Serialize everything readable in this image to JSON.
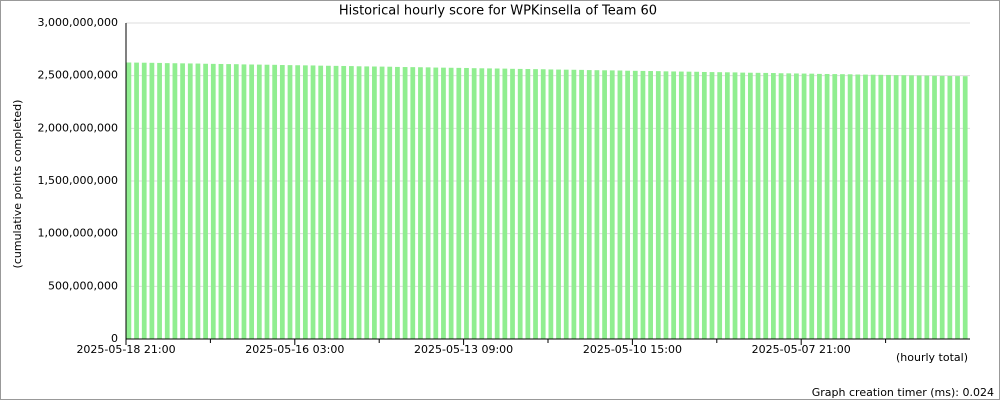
{
  "chart_data": {
    "type": "bar",
    "title": "Historical hourly score for WPKinsella of Team 60",
    "y_label": "(cumulative points completed)",
    "x_label": "(hourly total)",
    "footer": "Graph creation timer (ms): 0.024",
    "color": "#90ee90",
    "grid": true,
    "ylim": [
      0,
      3000000000
    ],
    "yticks": [
      0,
      {
        "value": 500000000,
        "label": "500,000,000"
      },
      {
        "value": 1000000000,
        "label": "1,000,000,000"
      },
      {
        "value": 1500000000,
        "label": "1,500,000,000"
      },
      {
        "value": 2000000000,
        "label": "2,000,000,000"
      },
      {
        "value": 2500000000,
        "label": "2,500,000,000"
      },
      {
        "value": 3000000000,
        "label": "3,000,000,000"
      }
    ],
    "categories": [
      "2025-05-18 21:00",
      null,
      null,
      null,
      null,
      null,
      null,
      null,
      null,
      null,
      null,
      null,
      null,
      null,
      null,
      null,
      null,
      null,
      null,
      null,
      null,
      null,
      "2025-05-16 03:00",
      null,
      null,
      null,
      null,
      null,
      null,
      null,
      null,
      null,
      null,
      null,
      null,
      null,
      null,
      null,
      null,
      null,
      null,
      null,
      null,
      null,
      "2025-05-13 09:00",
      null,
      null,
      null,
      null,
      null,
      null,
      null,
      null,
      null,
      null,
      null,
      null,
      null,
      null,
      null,
      null,
      null,
      null,
      null,
      null,
      null,
      "2025-05-10 15:00",
      null,
      null,
      null,
      null,
      null,
      null,
      null,
      null,
      null,
      null,
      null,
      null,
      null,
      null,
      null,
      null,
      null,
      null,
      null,
      null,
      null,
      "2025-05-07 21:00",
      null,
      null,
      null,
      null,
      null,
      null,
      null,
      null,
      null,
      null,
      null,
      null,
      null,
      null,
      null,
      null,
      null,
      null,
      null,
      null,
      null
    ],
    "values": [
      2625000000,
      2624000000,
      2623000000,
      2622000000,
      2621000000,
      2619000000,
      2618000000,
      2617000000,
      2616000000,
      2615000000,
      2613000000,
      2612000000,
      2611000000,
      2610000000,
      2609000000,
      2607000000,
      2606000000,
      2605000000,
      2604000000,
      2603000000,
      2601000000,
      2600000000,
      2599000000,
      2598000000,
      2597000000,
      2595000000,
      2594000000,
      2593000000,
      2592000000,
      2591000000,
      2589000000,
      2588000000,
      2587000000,
      2586000000,
      2585000000,
      2583000000,
      2582000000,
      2581000000,
      2580000000,
      2579000000,
      2577000000,
      2576000000,
      2575000000,
      2574000000,
      2573000000,
      2571000000,
      2570000000,
      2569000000,
      2568000000,
      2567000000,
      2565000000,
      2564000000,
      2563000000,
      2562000000,
      2561000000,
      2559000000,
      2558000000,
      2557000000,
      2556000000,
      2555000000,
      2553000000,
      2552000000,
      2551000000,
      2550000000,
      2549000000,
      2547000000,
      2546000000,
      2545000000,
      2544000000,
      2543000000,
      2541000000,
      2540000000,
      2539000000,
      2538000000,
      2537000000,
      2535000000,
      2534000000,
      2533000000,
      2532000000,
      2531000000,
      2529000000,
      2528000000,
      2527000000,
      2526000000,
      2525000000,
      2523000000,
      2522000000,
      2521000000,
      2520000000,
      2519000000,
      2517000000,
      2516000000,
      2515000000,
      2514000000,
      2513000000,
      2511000000,
      2510000000,
      2509000000,
      2508000000,
      2507000000,
      2505000000,
      2504000000,
      2503000000,
      2502000000,
      2501000000,
      2499000000,
      2498000000,
      2497000000,
      2496000000,
      2495000000
    ]
  }
}
